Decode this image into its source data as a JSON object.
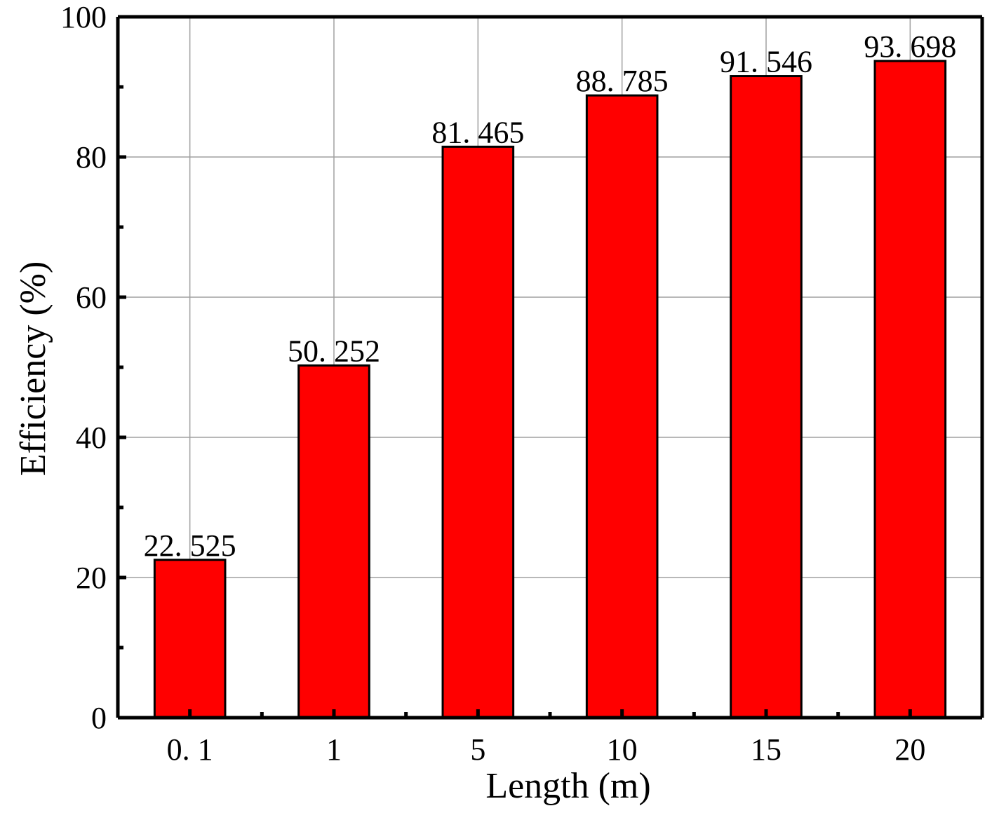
{
  "chart_data": {
    "type": "bar",
    "title": "",
    "xlabel": "Length (m)",
    "ylabel": "Efficiency (%)",
    "categories": [
      "0. 1",
      "1",
      "5",
      "10",
      "15",
      "20"
    ],
    "values": [
      22.525,
      50.252,
      81.465,
      88.785,
      91.546,
      93.698
    ],
    "value_labels": [
      "22. 525",
      "50. 252",
      "81. 465",
      "88. 785",
      "91. 546",
      "93. 698"
    ],
    "ylim": [
      0,
      100
    ],
    "yticks": [
      0,
      20,
      40,
      60,
      80,
      100
    ],
    "ytick_labels": [
      "0",
      "20",
      "40",
      "60",
      "80",
      "100"
    ],
    "grid": true,
    "bar_color": "#ff0000",
    "bar_edge_color": "#000000",
    "grid_color": "#a0a0a0"
  }
}
